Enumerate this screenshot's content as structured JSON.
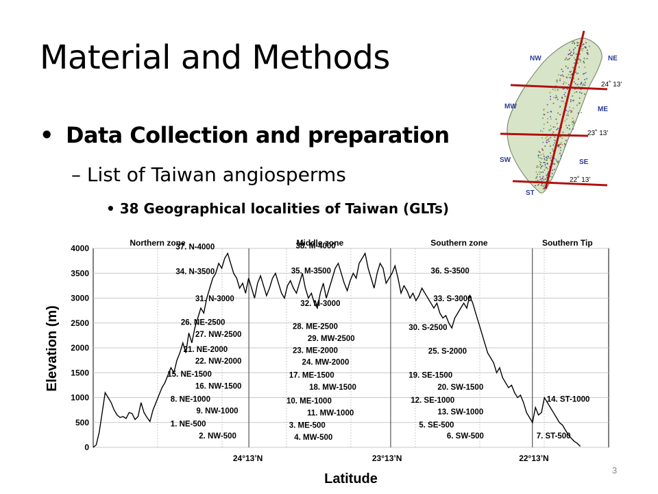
{
  "slide": {
    "title": "Material and Methods",
    "bullet1": "Data Collection and preparation",
    "bullet2": "List of Taiwan angiosperms",
    "bullet3": "38 Geographical localities of Taiwan (GLTs)",
    "page_number": "3",
    "bullet_glyph": "•",
    "dash_glyph": "–"
  },
  "map": {
    "region_labels": [
      "NW",
      "NE",
      "MW",
      "ME",
      "SW",
      "SE",
      "ST"
    ],
    "latitude_labels": [
      "24˚ 13’",
      "23˚ 13’",
      "22˚ 13’"
    ],
    "line_color": "#b01010"
  },
  "chart_data": {
    "type": "line",
    "xlabel": "Latitude",
    "ylabel": "Elevation (m)",
    "ylim": [
      0,
      4000
    ],
    "yticks": [
      "4000",
      "3500",
      "3000",
      "2500",
      "2000",
      "1500",
      "1000",
      "500",
      "0"
    ],
    "xticks": [
      "24°13’N",
      "23°13’N",
      "22°13’N"
    ],
    "grid": true,
    "zones": [
      "Northern zone",
      "Middle zone",
      "Southern zone",
      "Southern Tip"
    ],
    "profile": [
      0,
      50,
      300,
      700,
      1100,
      1000,
      900,
      750,
      650,
      600,
      620,
      580,
      700,
      680,
      560,
      620,
      900,
      700,
      600,
      520,
      750,
      900,
      1050,
      1200,
      1300,
      1450,
      1600,
      1500,
      1750,
      1900,
      2100,
      1900,
      2300,
      2100,
      2400,
      2600,
      2800,
      2700,
      3000,
      3200,
      3400,
      3500,
      3700,
      3600,
      3800,
      3900,
      3700,
      3500,
      3400,
      3200,
      3300,
      3100,
      3400,
      3200,
      3000,
      3300,
      3450,
      3250,
      3050,
      3200,
      3400,
      3500,
      3300,
      3100,
      3000,
      3250,
      3350,
      3200,
      3100,
      3300,
      3500,
      3200,
      3000,
      3100,
      2900,
      2800,
      3100,
      3300,
      3000,
      3200,
      3400,
      3600,
      3700,
      3500,
      3300,
      3150,
      3350,
      3500,
      3400,
      3700,
      3800,
      3900,
      3600,
      3400,
      3200,
      3500,
      3700,
      3600,
      3300,
      3400,
      3500,
      3650,
      3400,
      3100,
      3250,
      3150,
      3000,
      3100,
      2950,
      3050,
      3200,
      3100,
      3000,
      2900,
      2800,
      2900,
      2700,
      2600,
      2650,
      2500,
      2400,
      2600,
      2700,
      2800,
      2900,
      2800,
      3050,
      2900,
      2700,
      2500,
      2300,
      2100,
      1900,
      1800,
      1700,
      1500,
      1600,
      1400,
      1300,
      1200,
      1250,
      1100,
      1000,
      1050,
      900,
      700,
      600,
      500,
      800,
      650,
      700,
      1000,
      900,
      800,
      700,
      600,
      500,
      450,
      350,
      250,
      180,
      120,
      80,
      20
    ],
    "annotations": [
      "37. N-4000",
      "34. N-3500",
      "31. N-3000",
      "26. NE-2500",
      "27. NW-2500",
      "21. NE-2000",
      "22. NW-2000",
      "15. NE-1500",
      "16. NW-1500",
      "8. NE-1000",
      "9. NW-1000",
      "1. NE-500",
      "2. NW-500",
      "38. M-4000",
      "35. M-3500",
      "32. M-3000",
      "28. ME-2500",
      "29. MW-2500",
      "23. ME-2000",
      "24. MW-2000",
      "17. ME-1500",
      "18. MW-1500",
      "10. ME-1000",
      "11. MW-1000",
      "3. ME-500",
      "4. MW-500",
      "36. S-3500",
      "33. S-3000",
      "30. S-2500",
      "25. S-2000",
      "19. SE-1500",
      "20. SW-1500",
      "12. SE-1000",
      "13. SW-1000",
      "5. SE-500",
      "6. SW-500",
      "14. ST-1000",
      "7. ST-500"
    ]
  }
}
